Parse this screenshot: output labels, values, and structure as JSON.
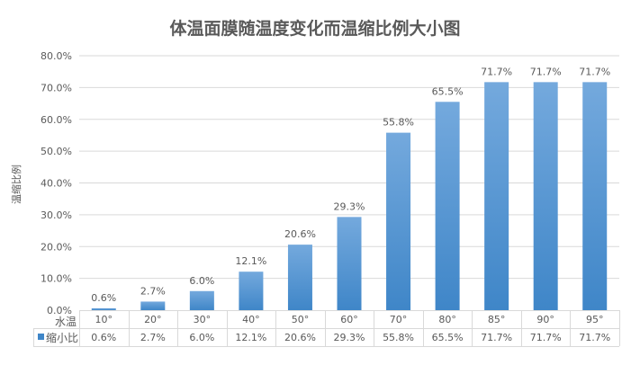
{
  "chart_data": {
    "type": "bar",
    "title": "体温面膜随温度变化而温缩比例大小图",
    "xlabel": "水温",
    "ylabel": "温缩比例",
    "categories": [
      "10°",
      "20°",
      "30°",
      "40°",
      "50°",
      "60°",
      "70°",
      "80°",
      "85°",
      "90°",
      "95°"
    ],
    "series": [
      {
        "name": "缩小比",
        "values": [
          0.6,
          2.7,
          6.0,
          12.1,
          20.6,
          29.3,
          55.8,
          65.5,
          71.7,
          71.7,
          71.7
        ],
        "labels": [
          "0.6%",
          "2.7%",
          "6.0%",
          "12.1%",
          "20.6%",
          "29.3%",
          "55.8%",
          "65.5%",
          "71.7%",
          "71.7%",
          "71.7%"
        ]
      }
    ],
    "ylim": [
      0,
      80
    ],
    "yticks": [
      "0.0%",
      "10.0%",
      "20.0%",
      "30.0%",
      "40.0%",
      "50.0%",
      "60.0%",
      "70.0%",
      "80.0%"
    ],
    "grid": true,
    "legend": "data-table",
    "colors": {
      "bar_top": "#74a9dd",
      "bar_bottom": "#3f86c8",
      "text": "#595959",
      "grid": "#d9d9d9"
    }
  }
}
